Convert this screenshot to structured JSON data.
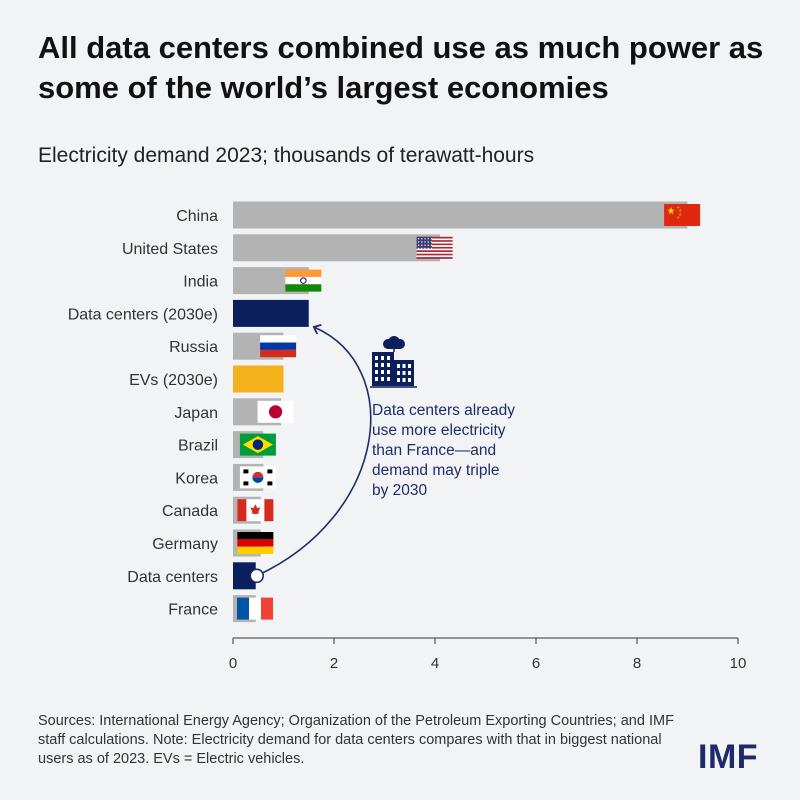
{
  "title": "All data centers combined use as much power as some of the world’s largest economies",
  "subtitle": "Electricity demand 2023; thousands of terawatt-hours",
  "sources": "Sources: International Energy Agency; Organization of the Petroleum Exporting Countries; and IMF staff calculations. Note: Electricity demand for data centers compares with that in biggest national users as of 2023. EVs = Electric vehicles.",
  "logo": "IMF",
  "annotation": {
    "lines": [
      "Data centers already",
      "use more electricity",
      "than France—and",
      "demand may triple",
      "by 2030"
    ]
  },
  "icons": {
    "building": "data-center-building-cloud-icon"
  },
  "colors": {
    "bar_gray": "#b3b3b3",
    "navy": "#0a1f5c",
    "ev_orange": "#f3b21b",
    "annotation": "#1e2d6b",
    "background": "#f2f3f5"
  },
  "chart_data": {
    "type": "bar",
    "orientation": "horizontal",
    "categories": [
      "China",
      "United States",
      "India",
      "Data centers (2030e)",
      "Russia",
      "EVs (2030e)",
      "Japan",
      "Brazil",
      "Korea",
      "Canada",
      "Germany",
      "Data centers",
      "France"
    ],
    "values": [
      9.0,
      4.1,
      1.5,
      1.5,
      1.0,
      1.0,
      0.95,
      0.6,
      0.6,
      0.55,
      0.55,
      0.45,
      0.45
    ],
    "bar_colors": [
      "gray",
      "gray",
      "gray",
      "navy",
      "gray",
      "orange",
      "gray",
      "gray",
      "gray",
      "gray",
      "gray",
      "navy",
      "gray"
    ],
    "flags": [
      "china",
      "usa",
      "india",
      null,
      "russia",
      null,
      "japan",
      "brazil",
      "korea",
      "canada",
      "germany",
      null,
      "france"
    ],
    "xlim": [
      0,
      10
    ],
    "xticks": [
      0,
      2,
      4,
      6,
      8,
      10
    ],
    "xlabel": "",
    "ylabel": "",
    "grid": false,
    "legend": "none"
  }
}
